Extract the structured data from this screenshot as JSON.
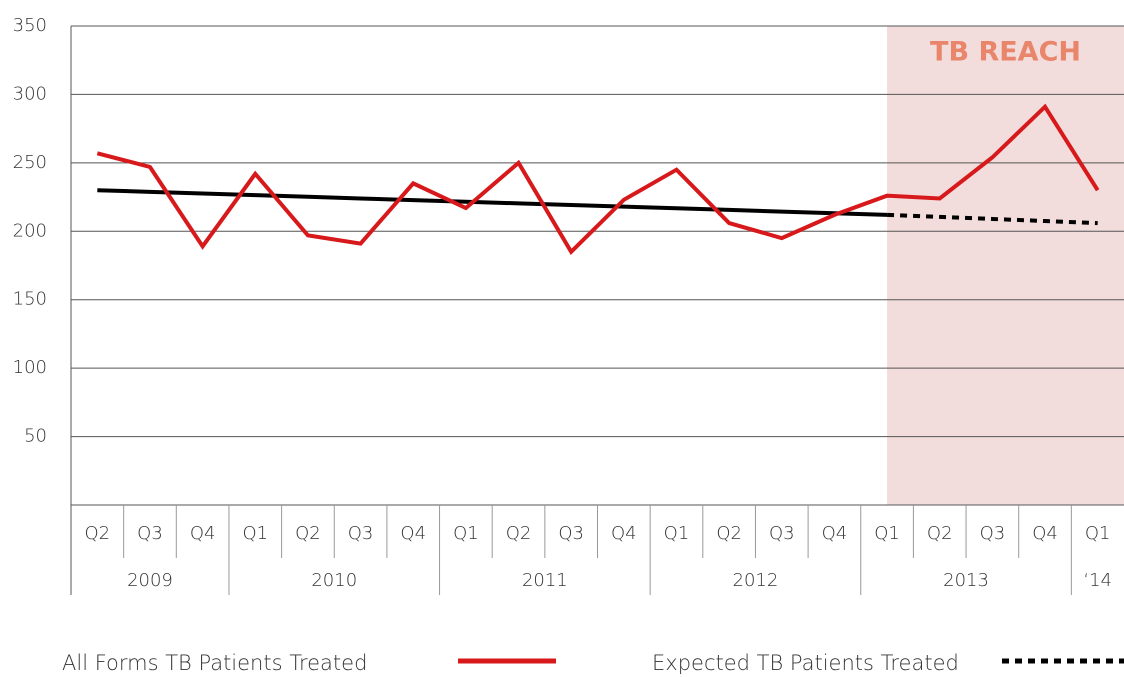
{
  "chart_data": {
    "type": "line",
    "categories": [
      "Q2",
      "Q3",
      "Q4",
      "Q1",
      "Q2",
      "Q3",
      "Q4",
      "Q1",
      "Q2",
      "Q3",
      "Q4",
      "Q1",
      "Q2",
      "Q3",
      "Q4",
      "Q1",
      "Q2",
      "Q3",
      "Q4",
      "Q1"
    ],
    "groups": [
      {
        "label": "2009",
        "count": 3
      },
      {
        "label": "2010",
        "count": 4
      },
      {
        "label": "2011",
        "count": 4
      },
      {
        "label": "2012",
        "count": 4
      },
      {
        "label": "2013",
        "count": 4
      },
      {
        "label": "‘14",
        "count": 1
      }
    ],
    "series": [
      {
        "name": "All Forms TB Patients Treated",
        "color": "#d7191c",
        "style": "solid",
        "values": [
          257,
          247,
          189,
          242,
          197,
          191,
          235,
          217,
          250,
          185,
          223,
          245,
          206,
          195,
          212,
          226,
          224,
          254,
          291,
          230
        ]
      },
      {
        "color": "#000000",
        "style": "solid",
        "values": [
          230,
          228.8,
          227.6,
          226.4,
          225.2,
          224,
          222.8,
          221.6,
          220.4,
          219.2,
          218,
          216.8,
          215.6,
          214.4,
          213.2,
          212,
          null,
          null,
          null,
          null
        ]
      },
      {
        "name": "Expected TB Patients Treated",
        "color": "#000000",
        "style": "dotted",
        "values": [
          null,
          null,
          null,
          null,
          null,
          null,
          null,
          null,
          null,
          null,
          null,
          null,
          null,
          null,
          null,
          212,
          210.5,
          209,
          207.5,
          206
        ]
      }
    ],
    "ylim": [
      0,
      350
    ],
    "yticks": [
      50,
      100,
      150,
      200,
      250,
      300,
      350
    ],
    "grid": true,
    "annotation": {
      "text": "TB REACH",
      "start_index": 15,
      "color": "#e8856a",
      "fill": "#f3dcdc"
    }
  }
}
